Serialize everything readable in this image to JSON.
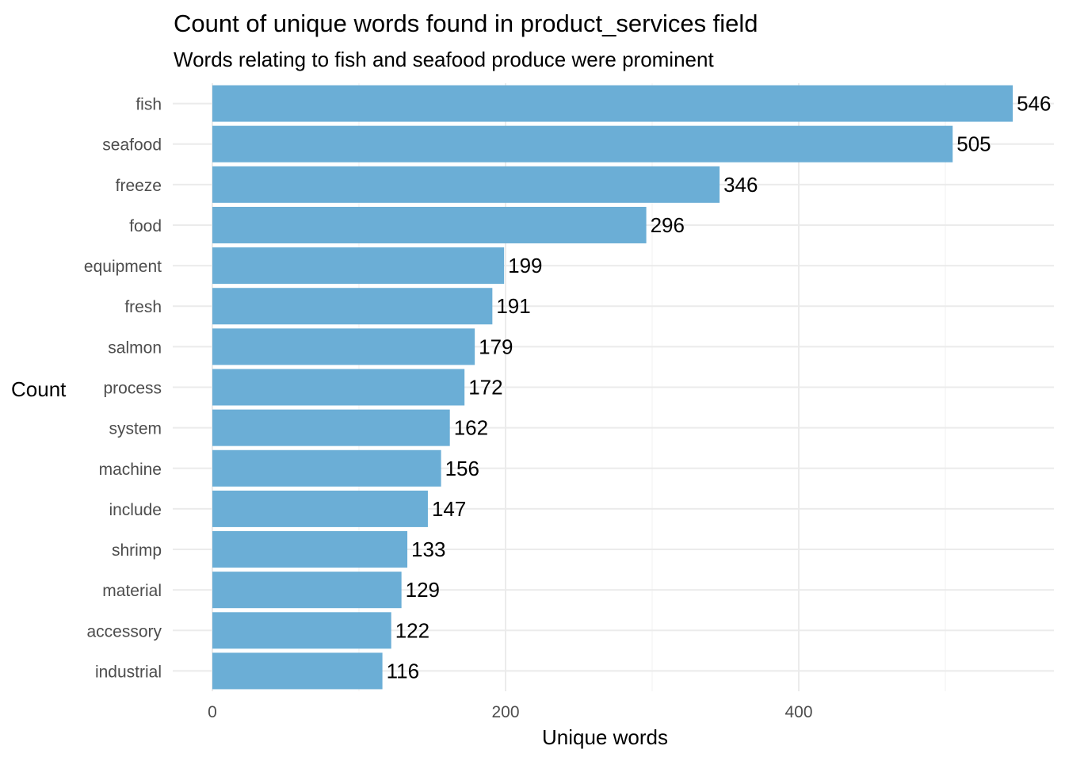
{
  "chart_data": {
    "type": "bar",
    "orientation": "horizontal",
    "title": "Count of unique words found in product_services field",
    "subtitle": "Words relating to fish and seafood produce were prominent",
    "xlabel": "Unique words",
    "ylabel": "Count",
    "categories": [
      "fish",
      "seafood",
      "freeze",
      "food",
      "equipment",
      "fresh",
      "salmon",
      "process",
      "system",
      "machine",
      "include",
      "shrimp",
      "material",
      "accessory",
      "industrial"
    ],
    "values": [
      546,
      505,
      346,
      296,
      199,
      191,
      179,
      172,
      162,
      156,
      147,
      133,
      129,
      122,
      116
    ],
    "xlim": [
      0,
      546
    ],
    "xticks": [
      "0",
      "200",
      "400"
    ],
    "xtick_values": [
      0,
      200,
      400
    ],
    "minor_gridlines": [
      100,
      300,
      500
    ],
    "grid": true,
    "bar_color": "#6BAED6",
    "legend": "none"
  }
}
